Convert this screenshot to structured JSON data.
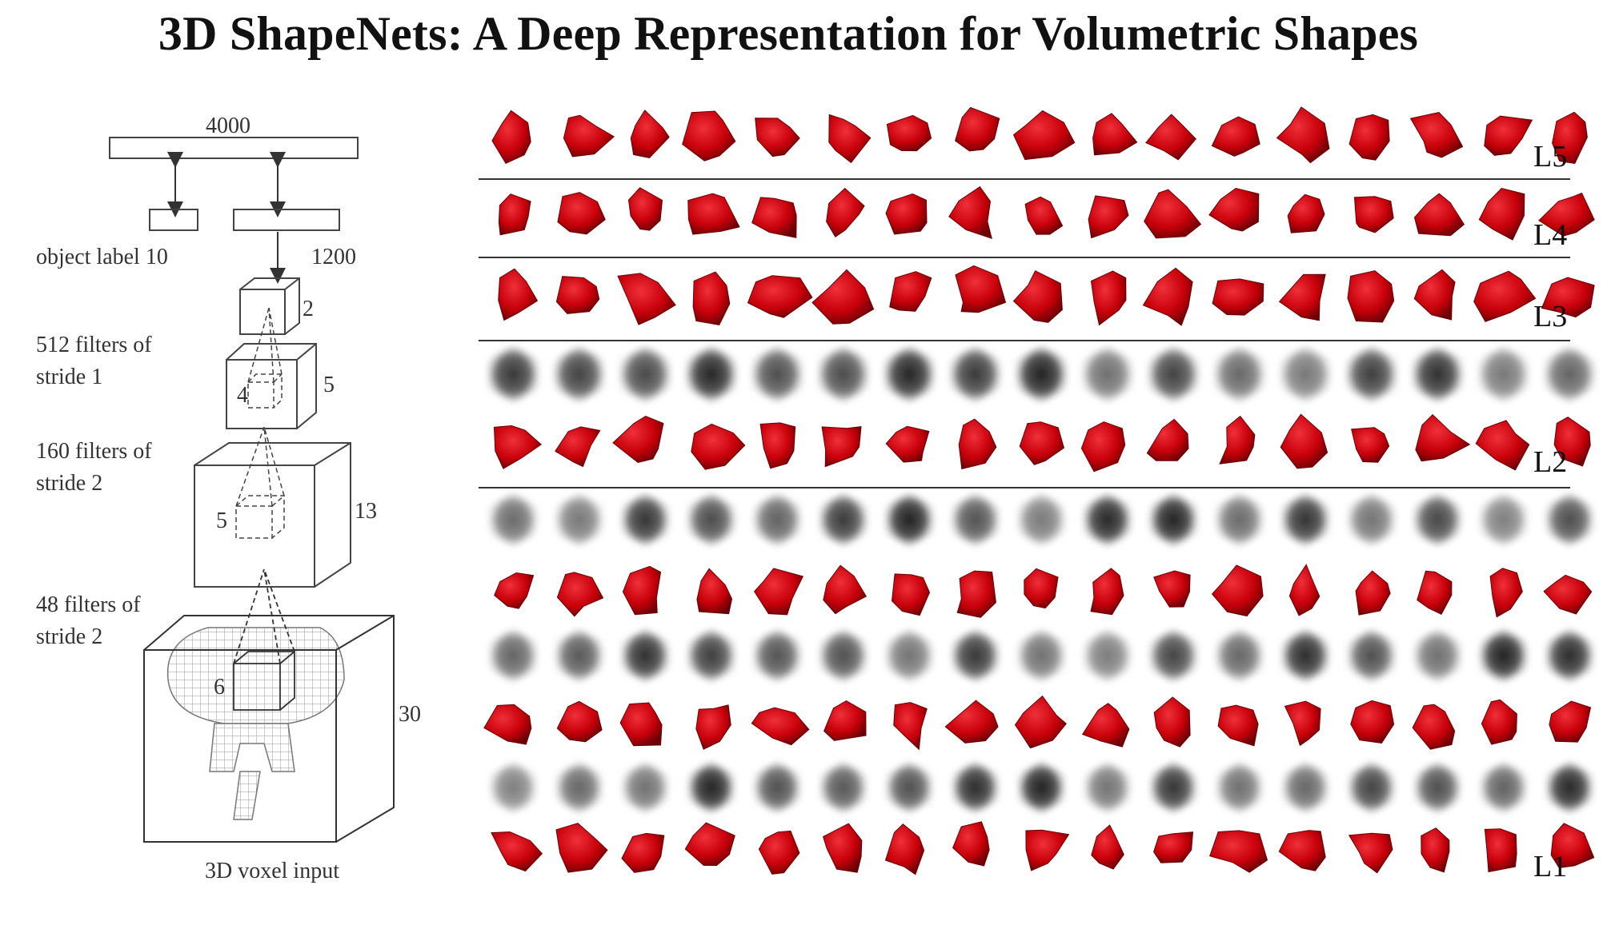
{
  "title": "3D ShapeNets: A Deep Representation for Volumetric Shapes",
  "architecture": {
    "top_units": "4000",
    "label_units": "object label 10",
    "hidden_units": "1200",
    "layers": [
      {
        "description": [
          "512 filters of",
          "stride 1"
        ],
        "size": "5",
        "kernel": "4"
      },
      {
        "description": [
          "160 filters of",
          "stride 2"
        ],
        "size": "13",
        "kernel": "5"
      },
      {
        "description": [
          "48 filters of",
          "stride 2"
        ],
        "size": "30",
        "kernel": "6"
      }
    ],
    "top_kernel": "2",
    "input_label": "3D voxel input"
  },
  "visualization": {
    "row_labels": [
      "L5",
      "L4",
      "L3",
      "L2",
      "L1"
    ],
    "columns": 17,
    "rows": [
      {
        "kind": "red",
        "label": "L5"
      },
      {
        "kind": "red",
        "label": "L4"
      },
      {
        "kind": "red",
        "label": "L3"
      },
      {
        "kind": "gray"
      },
      {
        "kind": "red",
        "label": "L2"
      },
      {
        "kind": "gray"
      },
      {
        "kind": "red"
      },
      {
        "kind": "gray"
      },
      {
        "kind": "red"
      },
      {
        "kind": "gray"
      },
      {
        "kind": "red",
        "label": "L1"
      }
    ],
    "colors": {
      "red": "#c8000a",
      "dark_red": "#6a0006",
      "gray": "#2a2a2a"
    }
  }
}
